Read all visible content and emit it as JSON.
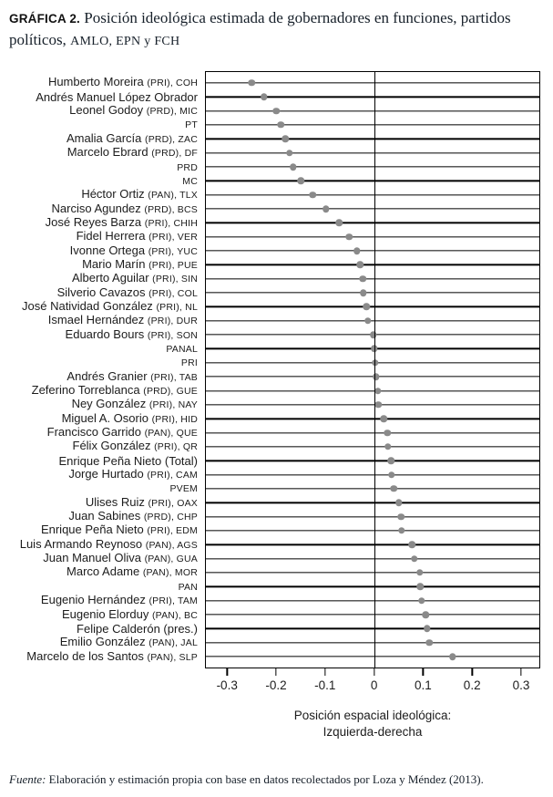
{
  "title": {
    "label": "GRÁFICA 2.",
    "text": " Posición ideológica estimada de gobernadores en funciones, partidos políticos, ",
    "acronyms": "AMLO, EPN y FCH"
  },
  "chart_data": {
    "type": "scatter",
    "subtype": "horizontal-dot-plot",
    "xlabel_line1": "Posición espacial ideológica:",
    "xlabel_line2": "Izquierda-derecha",
    "xlim": [
      -0.345,
      0.339
    ],
    "x_ticks": [
      -0.3,
      -0.2,
      -0.1,
      0,
      0.1,
      0.2,
      0.3
    ],
    "x_tick_labels": [
      "-0.3",
      "-0.2",
      "-0.1",
      "0",
      "0.1",
      "0.2",
      "0.3"
    ],
    "grid": "horizontal-row-lines",
    "dot_color": "#8a8a8a",
    "rows": [
      {
        "name": "Humberto Moreira",
        "detail": "(PRI), COH",
        "value": -0.25
      },
      {
        "name": "Andrés Manuel López Obrador",
        "detail": "",
        "value": -0.225
      },
      {
        "name": "Leonel Godoy",
        "detail": "(PRD), MIC",
        "value": -0.2
      },
      {
        "name": "",
        "detail": "PT",
        "value": -0.19
      },
      {
        "name": "Amalia García",
        "detail": "(PRD), ZAC",
        "value": -0.181
      },
      {
        "name": "Marcelo Ebrard",
        "detail": "(PRD), DF",
        "value": -0.173
      },
      {
        "name": "",
        "detail": "PRD",
        "value": -0.165
      },
      {
        "name": "",
        "detail": "MC",
        "value": -0.149
      },
      {
        "name": "Héctor Ortiz",
        "detail": "(PAN), TLX",
        "value": -0.125
      },
      {
        "name": "Narciso Agundez",
        "detail": "(PRD), BCS",
        "value": -0.098
      },
      {
        "name": "José Reyes Barza",
        "detail": "(PRI), CHIH",
        "value": -0.071
      },
      {
        "name": "Fidel Herrera",
        "detail": "(PRI), VER",
        "value": -0.051
      },
      {
        "name": "Ivonne Ortega",
        "detail": "(PRI), YUC",
        "value": -0.035
      },
      {
        "name": "Mario Marín",
        "detail": "(PRI), PUE",
        "value": -0.029
      },
      {
        "name": "Alberto Aguilar",
        "detail": "(PRI), SIN",
        "value": -0.023
      },
      {
        "name": "Silverio Cavazos",
        "detail": "(PRI), COL",
        "value": -0.022
      },
      {
        "name": "José Natividad González",
        "detail": "(PRI), NL",
        "value": -0.016
      },
      {
        "name": "Ismael Hernández",
        "detail": "(PRI), DUR",
        "value": -0.013
      },
      {
        "name": "Eduardo Bours",
        "detail": "(PRI), SON",
        "value": -0.002
      },
      {
        "name": "",
        "detail": "PANAL",
        "value": 0.0
      },
      {
        "name": "",
        "detail": "PRI",
        "value": 0.002
      },
      {
        "name": "Andrés Granier",
        "detail": "(PRI), TAB",
        "value": 0.004
      },
      {
        "name": "Zeferino Torreblanca",
        "detail": "(PRD), GUE",
        "value": 0.008
      },
      {
        "name": "Ney González",
        "detail": "(PRI), NAY",
        "value": 0.009
      },
      {
        "name": "Miguel A. Osorio",
        "detail": "(PRI), HID",
        "value": 0.02
      },
      {
        "name": "Francisco Garrido",
        "detail": "(PAN), QUE",
        "value": 0.027
      },
      {
        "name": "Félix González",
        "detail": "(PRI), QR",
        "value": 0.028
      },
      {
        "name": "Enrique Peña Nieto (Total)",
        "detail": "",
        "value": 0.035
      },
      {
        "name": "Jorge Hurtado",
        "detail": "(PRI), CAM",
        "value": 0.036
      },
      {
        "name": "",
        "detail": "PVEM",
        "value": 0.04
      },
      {
        "name": "Ulises Ruiz",
        "detail": "(PRI), OAX",
        "value": 0.05
      },
      {
        "name": "Juan Sabines",
        "detail": "(PRD), CHP",
        "value": 0.055
      },
      {
        "name": "Enrique Peña Nieto",
        "detail": "(PRI), EDM",
        "value": 0.056
      },
      {
        "name": "Luis Armando Reynoso",
        "detail": "(PAN), AGS",
        "value": 0.077
      },
      {
        "name": "Juan Manuel Oliva",
        "detail": "(PAN), GUA",
        "value": 0.082
      },
      {
        "name": "Marco Adame",
        "detail": "(PAN), MOR",
        "value": 0.093
      },
      {
        "name": "",
        "detail": "PAN",
        "value": 0.094
      },
      {
        "name": "Eugenio Hernández",
        "detail": "(PRI), TAM",
        "value": 0.097
      },
      {
        "name": "Eugenio Elorduy",
        "detail": "(PAN), BC",
        "value": 0.105
      },
      {
        "name": "Felipe Calderón (pres.)",
        "detail": "",
        "value": 0.108
      },
      {
        "name": "Emilio González",
        "detail": "(PAN), JAL",
        "value": 0.113
      },
      {
        "name": "Marcelo de los Santos",
        "detail": "(PAN), SLP",
        "value": 0.16
      }
    ]
  },
  "source": {
    "label": "Fuente:",
    "text": " Elaboración y estimación propia con base en datos recolectados por Loza y Méndez (2013)."
  }
}
